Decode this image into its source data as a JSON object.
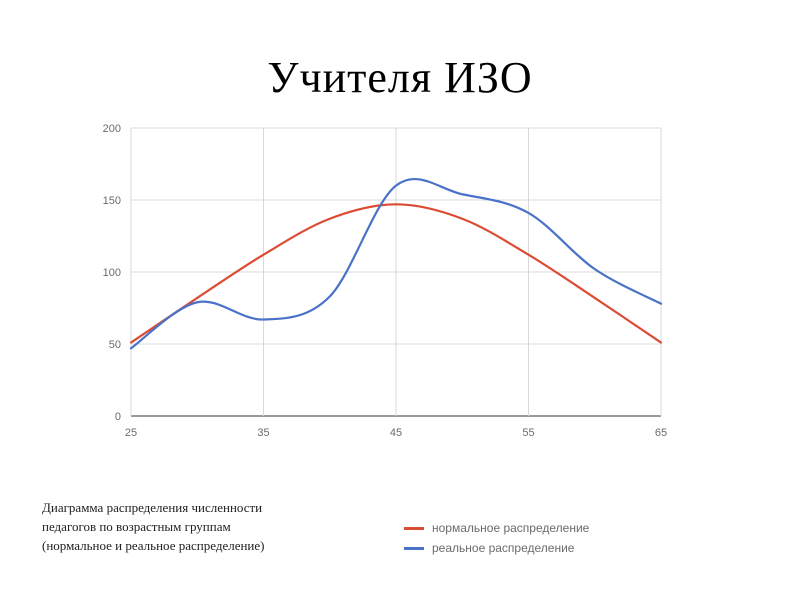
{
  "slide": {
    "title": "Учителя ИЗО",
    "caption_lines": [
      "Диаграмма распределения численности",
      "педагогов по возрастным группам",
      "(нормальное и реальное распределение)"
    ]
  },
  "colors": {
    "normal": "#dc4b33",
    "real": "#4a72c8",
    "grid": "#d9d9d9",
    "axis": "#333333"
  },
  "chart_data": {
    "type": "line",
    "title": "",
    "xlabel": "",
    "ylabel": "",
    "xlim": [
      25,
      65
    ],
    "ylim": [
      0,
      200
    ],
    "x_ticks": [
      25,
      35,
      45,
      55,
      65
    ],
    "y_ticks": [
      0,
      50,
      100,
      150,
      200
    ],
    "grid": true,
    "legend_position": "bottom",
    "series": [
      {
        "name": "нормальное распределение",
        "color": "#dc4b33",
        "x": [
          25,
          30,
          35,
          40,
          45,
          50,
          55,
          60,
          65
        ],
        "y": [
          51,
          82,
          112,
          137,
          147,
          137,
          112,
          82,
          51
        ]
      },
      {
        "name": "реальное распределение",
        "color": "#4a72c8",
        "x": [
          25,
          30,
          35,
          40,
          45,
          50,
          55,
          60,
          65
        ],
        "y": [
          47,
          79,
          67,
          83,
          160,
          154,
          141,
          102,
          78
        ]
      }
    ]
  }
}
